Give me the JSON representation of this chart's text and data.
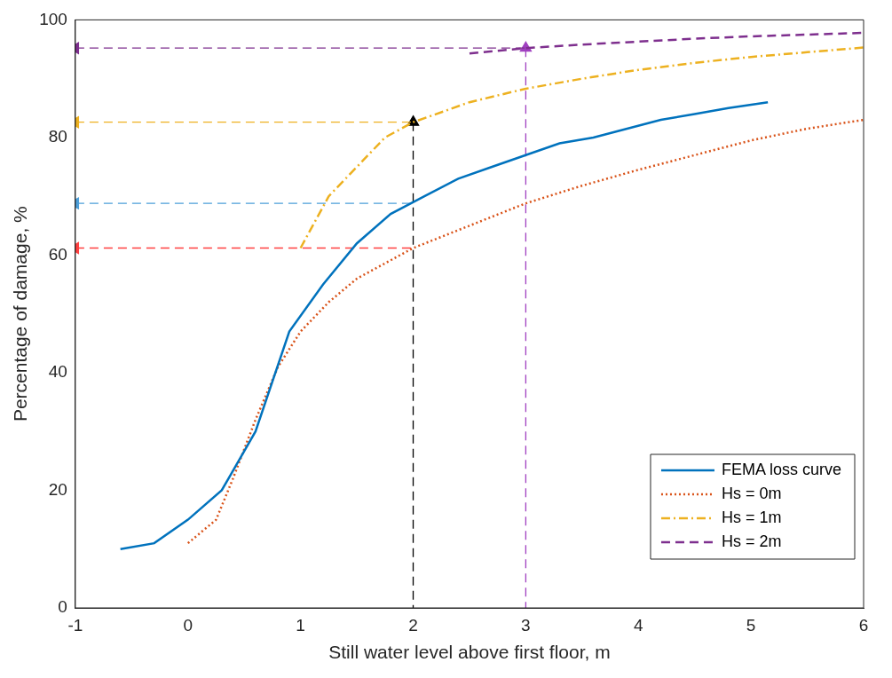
{
  "chart_data": {
    "type": "line",
    "xlabel": "Still water level above first floor, m",
    "ylabel": "Percentage of damage, %",
    "xlim": [
      -1,
      6
    ],
    "xticks": [
      -1,
      0,
      1,
      2,
      3,
      4,
      5,
      6
    ],
    "ylim": [
      0,
      100
    ],
    "yticks": [
      0,
      20,
      40,
      60,
      80,
      100
    ],
    "grid": false,
    "legend": "bottom right",
    "series": [
      {
        "name": "FEMA loss curve",
        "color": "#0072bd",
        "line_style": "solid",
        "x": [
          -0.6,
          -0.3,
          0,
          0.3,
          0.6,
          0.9,
          1.2,
          1.5,
          1.8,
          2.1,
          2.4,
          2.7,
          3.0,
          3.3,
          3.6,
          3.9,
          4.2,
          4.5,
          4.8,
          5.15
        ],
        "values": [
          10,
          11,
          15,
          20,
          30,
          47,
          55,
          62,
          67,
          70,
          73,
          75,
          77,
          79,
          80,
          81.5,
          83,
          84,
          85,
          86
        ]
      },
      {
        "name": "Hs = 0m",
        "color": "#d95319",
        "line_style": "dotted",
        "x": [
          0,
          0.25,
          0.4,
          0.6,
          0.8,
          1.0,
          1.25,
          1.5,
          2,
          2.5,
          3,
          3.5,
          4,
          4.5,
          5,
          5.5,
          6
        ],
        "values": [
          11,
          15,
          22,
          32,
          41,
          47,
          52,
          56,
          61.2,
          65,
          68.8,
          71.8,
          74.5,
          77,
          79.5,
          81.5,
          83
        ]
      },
      {
        "name": "Hs = 1m",
        "color": "#edb120",
        "line_style": "dashdot",
        "x": [
          1,
          1.25,
          1.5,
          1.75,
          2,
          2.5,
          3,
          3.5,
          4,
          4.5,
          5,
          5.5,
          6
        ],
        "values": [
          61.2,
          70,
          75,
          80,
          82.6,
          86,
          88.3,
          90,
          91.5,
          92.7,
          93.7,
          94.5,
          95.3
        ]
      },
      {
        "name": "Hs = 2m",
        "color": "#7e2f8e",
        "line_style": "dashed",
        "x": [
          2.5,
          3,
          3.5,
          4,
          4.5,
          5,
          5.5,
          6
        ],
        "values": [
          94.3,
          95.2,
          95.8,
          96.3,
          96.8,
          97.2,
          97.5,
          97.8
        ]
      },
      {
        "color": "#ff4040",
        "line_style": "dashed",
        "marker": "triangle",
        "x": [
          -1,
          2
        ],
        "values": [
          61.2,
          61.2
        ]
      },
      {
        "color": "#4d9fd9",
        "line_style": "dashed",
        "marker": "triangle",
        "x": [
          -1,
          2
        ],
        "values": [
          68.8,
          68.8
        ]
      },
      {
        "color": "#edb120",
        "line_style": "dashed",
        "marker": "triangle",
        "x": [
          -1,
          2
        ],
        "values": [
          82.6,
          82.6
        ]
      },
      {
        "color": "#7e2f8e",
        "line_style": "dashed",
        "marker": "triangle",
        "x": [
          -1,
          3
        ],
        "values": [
          95.2,
          95.2
        ]
      },
      {
        "color": "#000000",
        "line_style": "dashed",
        "marker": "triangle",
        "x": [
          2,
          2
        ],
        "values": [
          82.6,
          0
        ]
      },
      {
        "color": "#a040c0",
        "line_style": "dashed",
        "marker": "triangle",
        "x": [
          3,
          3
        ],
        "values": [
          95.2,
          0
        ]
      }
    ]
  }
}
